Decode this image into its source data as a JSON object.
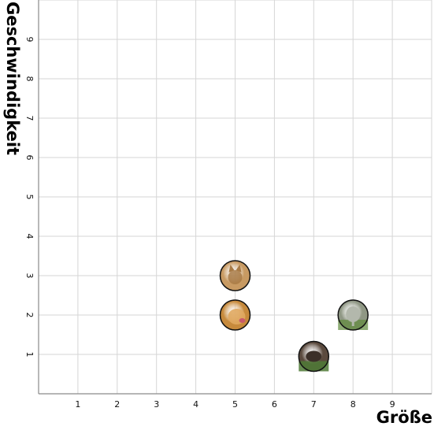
{
  "chart_data": {
    "type": "scatter",
    "title": "",
    "xlabel": "Größe",
    "ylabel": "Geschwindigkeit",
    "xlim": [
      0,
      10
    ],
    "ylim": [
      0,
      10
    ],
    "x_ticks": [
      "1",
      "2",
      "3",
      "4",
      "5",
      "6",
      "7",
      "8",
      "9"
    ],
    "y_ticks": [
      "1",
      "2",
      "3",
      "4",
      "5",
      "6",
      "7",
      "8",
      "9"
    ],
    "grid": true,
    "points": [
      {
        "name": "cat",
        "icon": "cat-photo-icon",
        "x": 5,
        "y": 3,
        "color": "#c89a62"
      },
      {
        "name": "dog",
        "icon": "dog-photo-icon",
        "x": 5,
        "y": 2,
        "color": "#c78a3c"
      },
      {
        "name": "donkey",
        "icon": "donkey-photo-icon",
        "x": 7,
        "y": 0.95,
        "color": "#5b4a3e"
      },
      {
        "name": "elephant",
        "icon": "elephant-photo-icon",
        "x": 8,
        "y": 2,
        "color": "#8f9784"
      }
    ]
  }
}
